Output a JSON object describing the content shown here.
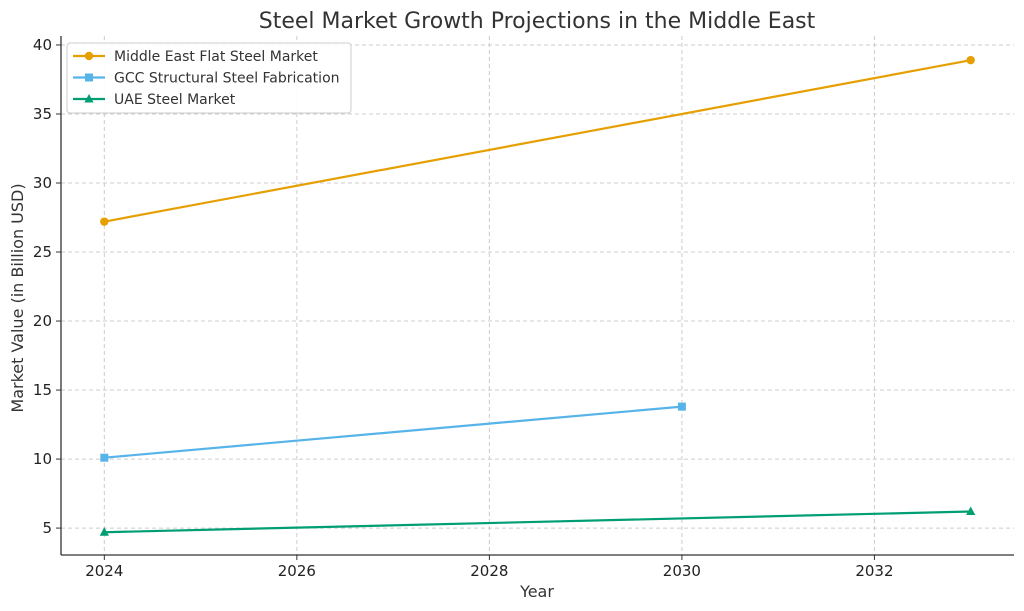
{
  "chart_data": {
    "type": "line",
    "title": "Steel Market Growth Projections in the Middle East",
    "xlabel": "Year",
    "ylabel": "Market Value (in Billion USD)",
    "xlim": [
      2023.55,
      2033.45
    ],
    "ylim": [
      3.05,
      40.65
    ],
    "x_ticks": [
      2024,
      2026,
      2028,
      2030,
      2032
    ],
    "y_ticks": [
      5,
      10,
      15,
      20,
      25,
      30,
      35,
      40
    ],
    "grid": true,
    "legend_position": "top-left",
    "series": [
      {
        "name": "Middle East Flat Steel Market",
        "color": "#E69F00",
        "marker": "circle",
        "x": [
          2024,
          2033
        ],
        "y": [
          27.2,
          38.9
        ]
      },
      {
        "name": "GCC Structural Steel Fabrication",
        "color": "#56B4E9",
        "marker": "square",
        "x": [
          2024,
          2030
        ],
        "y": [
          10.1,
          13.8
        ]
      },
      {
        "name": "UAE Steel Market",
        "color": "#009E73",
        "marker": "triangle",
        "x": [
          2024,
          2033
        ],
        "y": [
          4.7,
          6.2
        ]
      }
    ]
  }
}
